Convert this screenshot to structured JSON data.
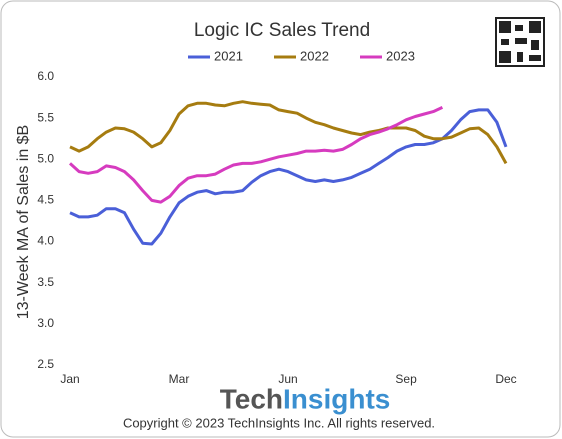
{
  "chart_data": {
    "type": "line",
    "title": "Logic IC Sales Trend",
    "y_label": "13-Week MA of Sales in $B",
    "legend": "top",
    "categories": [
      "Jan",
      null,
      null,
      null,
      null,
      null,
      null,
      null,
      null,
      null,
      null,
      null,
      "Mar",
      null,
      null,
      null,
      null,
      null,
      null,
      null,
      null,
      null,
      null,
      null,
      "Jun",
      null,
      null,
      null,
      null,
      null,
      null,
      null,
      null,
      null,
      null,
      null,
      null,
      "Sep",
      null,
      null,
      null,
      null,
      null,
      null,
      null,
      null,
      null,
      null,
      "Dec"
    ],
    "ylim": [
      2.5,
      6.0
    ],
    "yticks": [
      2.5,
      {
        "value": 3.0,
        "label": "3.0"
      },
      3.5,
      {
        "value": 4.0,
        "label": "4.0"
      },
      4.5,
      {
        "value": 5.0,
        "label": "5.0"
      },
      5.5,
      {
        "value": 6.0,
        "label": "6.0"
      }
    ],
    "series": [
      {
        "name": "2021",
        "color": "#4a5fd8",
        "values": [
          4.35,
          4.3,
          4.3,
          4.32,
          4.4,
          4.4,
          4.35,
          4.15,
          3.98,
          3.97,
          4.1,
          4.3,
          4.47,
          4.55,
          4.6,
          4.62,
          4.58,
          4.6,
          4.6,
          4.62,
          4.72,
          4.8,
          4.85,
          4.88,
          4.85,
          4.8,
          4.75,
          4.73,
          4.75,
          4.73,
          4.75,
          4.78,
          4.83,
          4.88,
          4.95,
          5.02,
          5.1,
          5.15,
          5.18,
          5.18,
          5.2,
          5.25,
          5.35,
          5.48,
          5.58,
          5.6,
          5.6,
          5.45,
          5.15
        ]
      },
      {
        "name": "2022",
        "color": "#a67c10",
        "values": [
          5.15,
          5.1,
          5.15,
          5.25,
          5.33,
          5.38,
          5.37,
          5.33,
          5.25,
          5.15,
          5.2,
          5.35,
          5.55,
          5.65,
          5.68,
          5.68,
          5.66,
          5.65,
          5.68,
          5.7,
          5.68,
          5.67,
          5.66,
          5.6,
          5.58,
          5.56,
          5.5,
          5.45,
          5.42,
          5.38,
          5.35,
          5.32,
          5.3,
          5.33,
          5.35,
          5.38,
          5.38,
          5.38,
          5.35,
          5.28,
          5.25,
          5.25,
          5.27,
          5.32,
          5.37,
          5.38,
          5.3,
          5.15,
          4.95
        ]
      },
      {
        "name": "2023",
        "color": "#d63bbf",
        "values": [
          4.95,
          4.85,
          4.83,
          4.85,
          4.92,
          4.9,
          4.85,
          4.75,
          4.62,
          4.5,
          4.48,
          4.55,
          4.68,
          4.77,
          4.8,
          4.8,
          4.82,
          4.88,
          4.93,
          4.95,
          4.95,
          4.97,
          5.0,
          5.03,
          5.05,
          5.07,
          5.1,
          5.1,
          5.11,
          5.1,
          5.12,
          5.18,
          5.25,
          5.3,
          5.33,
          5.37,
          5.42,
          5.48,
          5.52,
          5.55,
          5.58,
          5.63,
          null,
          null,
          null,
          null,
          null,
          null,
          null
        ]
      }
    ]
  },
  "footer": {
    "brand_prefix": "Tech",
    "brand_suffix": "Insights",
    "copyright": "Copyright © 2023 TechInsights Inc.  All rights reserved."
  }
}
